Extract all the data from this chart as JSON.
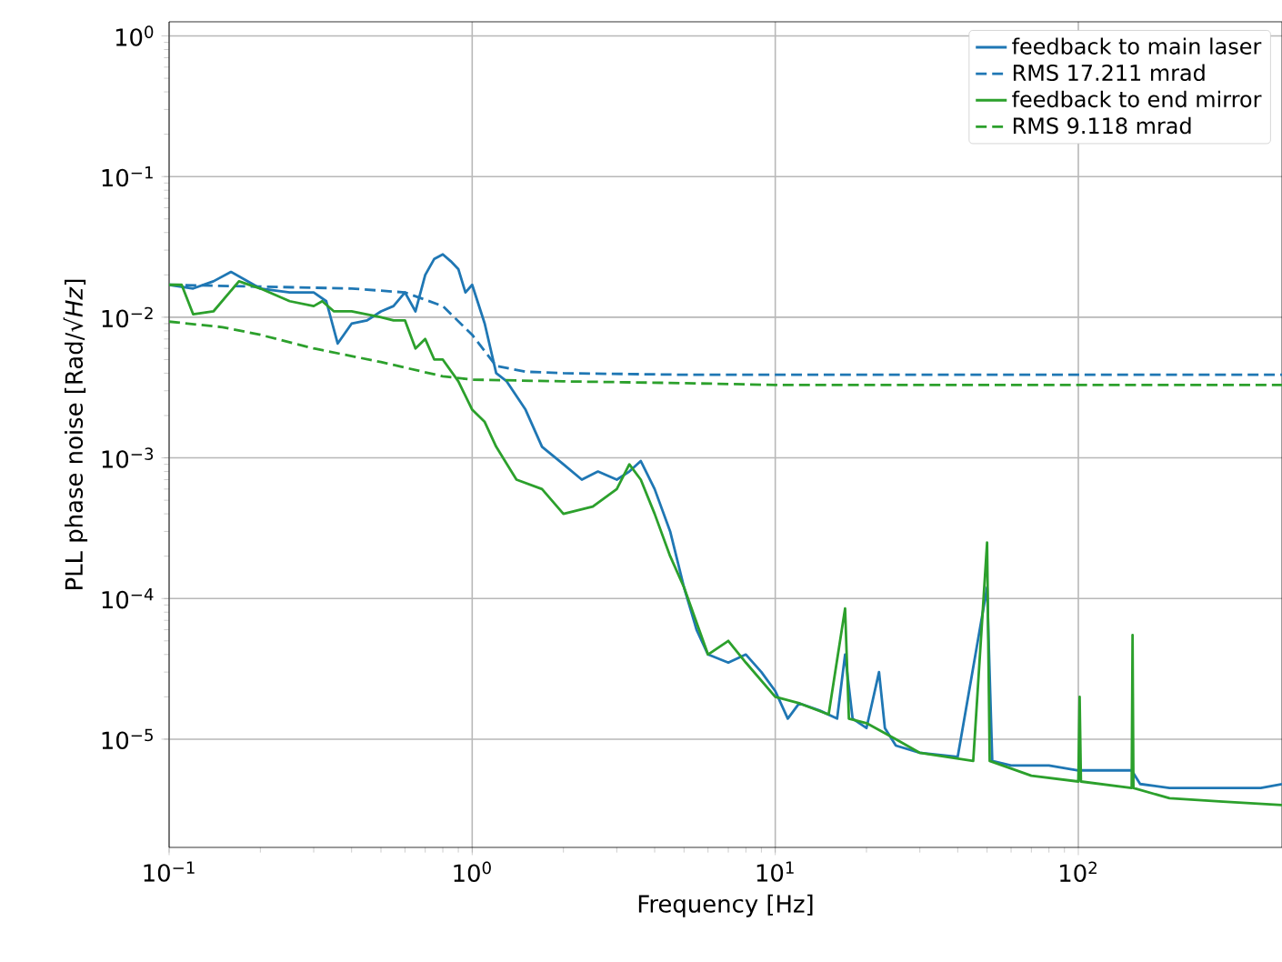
{
  "chart_data": {
    "type": "line",
    "xlabel": "Frequency [Hz]",
    "ylabel": "PLL phase noise [Rad/√*Hz*]",
    "log": "xy",
    "grid": true,
    "legend": "top right",
    "marker": "none",
    "xlim": [
      0.1,
      470
    ],
    "ylim": [
      1.7e-06,
      1.26
    ],
    "xticks": [
      {
        "value": 0.1,
        "label": "10$^{−1}$"
      },
      {
        "value": 1,
        "label": "10$^{0}$"
      },
      {
        "value": 10,
        "label": "10$^{1}$"
      },
      {
        "value": 100,
        "label": "10$^{2}$"
      }
    ],
    "yticks": [
      {
        "value": 1e-05,
        "label": "10$^{−5}$"
      },
      {
        "value": 0.0001,
        "label": "10$^{−4}$"
      },
      {
        "value": 0.001,
        "label": "10$^{−3}$"
      },
      {
        "value": 0.01,
        "label": "10$^{−2}$"
      },
      {
        "value": 0.1,
        "label": "10$^{−1}$"
      },
      {
        "value": 1,
        "label": "10$^{0}$"
      }
    ],
    "series": [
      {
        "name": "feedback to main laser",
        "color": "#1f77b4",
        "line_style": "solid",
        "x": [
          0.1,
          0.12,
          0.14,
          0.16,
          0.2,
          0.25,
          0.3,
          0.33,
          0.36,
          0.4,
          0.45,
          0.5,
          0.55,
          0.6,
          0.65,
          0.7,
          0.75,
          0.8,
          0.85,
          0.9,
          0.95,
          1.0,
          1.1,
          1.2,
          1.3,
          1.5,
          1.7,
          2.0,
          2.3,
          2.6,
          3.0,
          3.3,
          3.6,
          4.0,
          4.5,
          5.0,
          5.5,
          6,
          7,
          8,
          9,
          10,
          11,
          12,
          14,
          16,
          17,
          18,
          20,
          22,
          23,
          25,
          30,
          40,
          50,
          52,
          60,
          80,
          100,
          120,
          150,
          160,
          200,
          300,
          400,
          470
        ],
        "values": [
          0.017,
          0.016,
          0.018,
          0.021,
          0.016,
          0.015,
          0.015,
          0.013,
          0.0065,
          0.009,
          0.0095,
          0.011,
          0.012,
          0.015,
          0.011,
          0.02,
          0.026,
          0.028,
          0.025,
          0.022,
          0.015,
          0.017,
          0.009,
          0.004,
          0.0035,
          0.0022,
          0.0012,
          0.0009,
          0.0007,
          0.0008,
          0.0007,
          0.0008,
          0.00095,
          0.0006,
          0.0003,
          0.00012,
          6e-05,
          4e-05,
          3.5e-05,
          4e-05,
          3e-05,
          2.2e-05,
          1.4e-05,
          1.8e-05,
          1.6e-05,
          1.4e-05,
          4e-05,
          1.4e-05,
          1.2e-05,
          3e-05,
          1.2e-05,
          9e-06,
          8e-06,
          7.5e-06,
          0.00012,
          7e-06,
          6.5e-06,
          6.5e-06,
          6e-06,
          6e-06,
          6e-06,
          4.8e-06,
          4.5e-06,
          4.5e-06,
          4.5e-06,
          4.8e-06
        ]
      },
      {
        "name": "RMS 17.211 mrad",
        "color": "#1f77b4",
        "line_style": "dashed",
        "x": [
          0.1,
          0.2,
          0.4,
          0.6,
          0.8,
          1.0,
          1.2,
          1.5,
          2,
          5,
          470
        ],
        "values": [
          0.017,
          0.0165,
          0.016,
          0.015,
          0.012,
          0.0075,
          0.0045,
          0.0041,
          0.004,
          0.0039,
          0.0039
        ]
      },
      {
        "name": "feedback to end mirror",
        "color": "#2ca02c",
        "line_style": "solid",
        "x": [
          0.1,
          0.11,
          0.12,
          0.14,
          0.17,
          0.2,
          0.25,
          0.3,
          0.32,
          0.35,
          0.4,
          0.5,
          0.55,
          0.6,
          0.65,
          0.7,
          0.75,
          0.8,
          0.9,
          1.0,
          1.1,
          1.2,
          1.4,
          1.7,
          2.0,
          2.5,
          3.0,
          3.3,
          3.6,
          4.0,
          4.5,
          5.0,
          6,
          7,
          8,
          10,
          12,
          15,
          17,
          17.5,
          20,
          25,
          30,
          45,
          50,
          51,
          70,
          100,
          101,
          102,
          150,
          151,
          152,
          200,
          300,
          470
        ],
        "values": [
          0.017,
          0.017,
          0.0105,
          0.011,
          0.018,
          0.016,
          0.013,
          0.012,
          0.013,
          0.011,
          0.011,
          0.01,
          0.0095,
          0.0095,
          0.006,
          0.007,
          0.005,
          0.005,
          0.0035,
          0.0022,
          0.0018,
          0.0012,
          0.0007,
          0.0006,
          0.0004,
          0.00045,
          0.0006,
          0.0009,
          0.0007,
          0.0004,
          0.0002,
          0.00012,
          4e-05,
          5e-05,
          3.5e-05,
          2e-05,
          1.8e-05,
          1.5e-05,
          8.5e-05,
          1.4e-05,
          1.3e-05,
          1e-05,
          8e-06,
          7e-06,
          0.00025,
          7e-06,
          5.5e-06,
          5e-06,
          2e-05,
          5e-06,
          4.5e-06,
          5.5e-05,
          4.5e-06,
          3.8e-06,
          3.6e-06,
          3.4e-06
        ]
      },
      {
        "name": "RMS 9.118 mrad",
        "color": "#2ca02c",
        "line_style": "dashed",
        "x": [
          0.1,
          0.15,
          0.2,
          0.3,
          0.5,
          0.8,
          1.0,
          2,
          5,
          10,
          470
        ],
        "values": [
          0.0093,
          0.0085,
          0.0075,
          0.006,
          0.0048,
          0.0038,
          0.0036,
          0.0035,
          0.0034,
          0.0033,
          0.0033
        ]
      }
    ]
  }
}
